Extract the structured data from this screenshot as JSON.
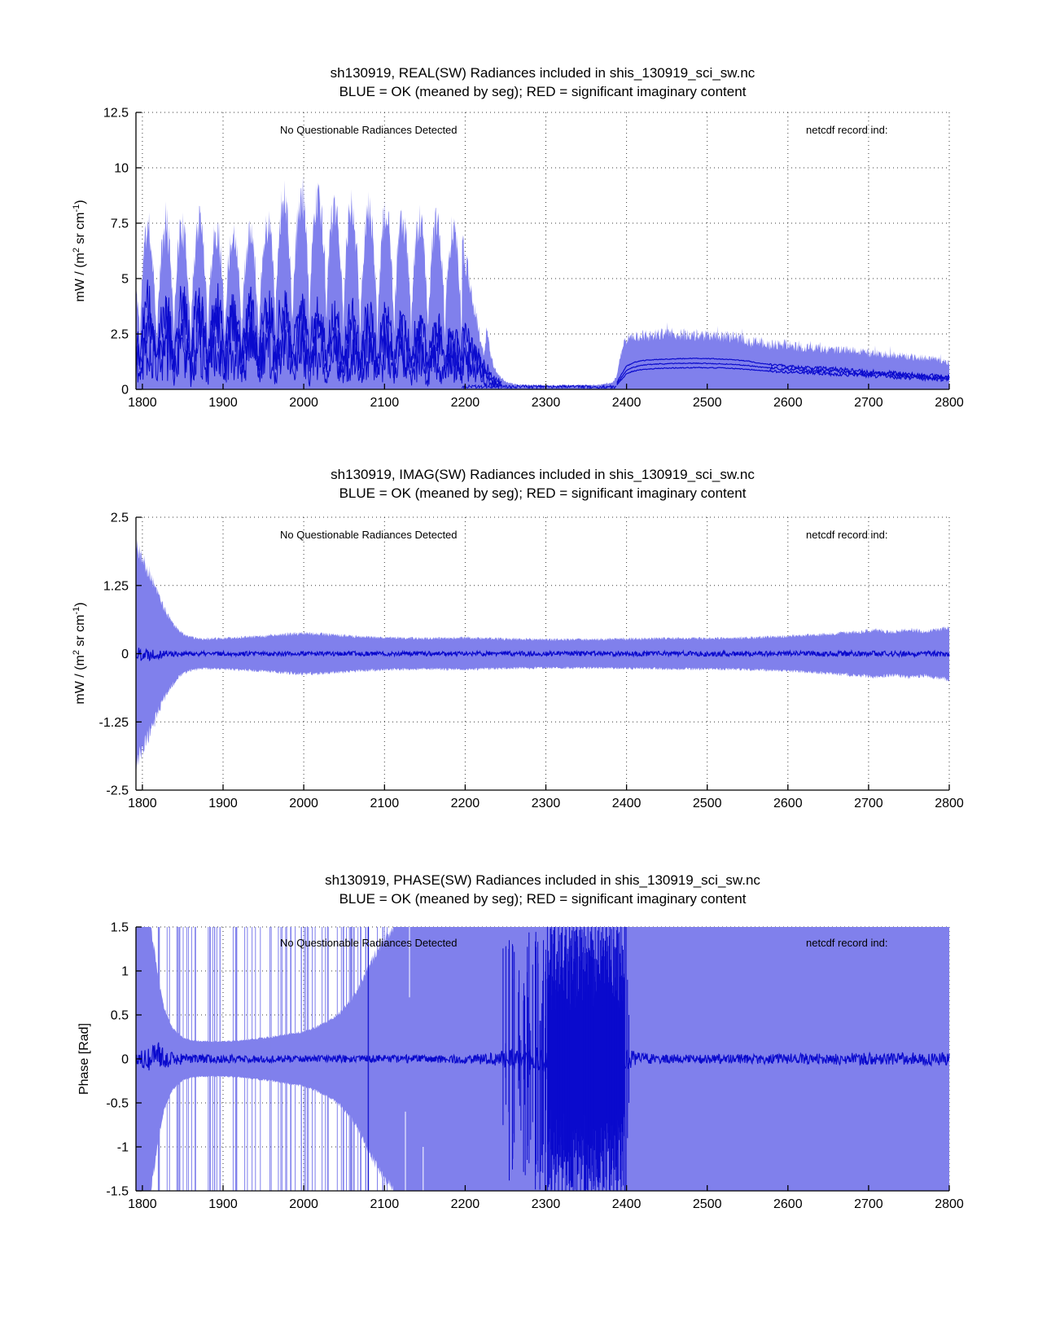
{
  "page": {
    "background": "#ffffff"
  },
  "chart_data": [
    {
      "id": "real",
      "type": "area",
      "title": "sh130919, REAL(SW) Radiances included in shis_130919_sci_sw.nc",
      "subtitle": "BLUE = OK (meaned by seg); RED = significant imaginary content",
      "annotation_left": "No Questionable Radiances Detected",
      "annotation_right": "netcdf record ind:",
      "ylabel": {
        "pre": "mW / (m",
        "sup1": "2",
        "mid": " sr cm",
        "sup2": "-1",
        "post": ")"
      },
      "xlim": [
        1792,
        2800
      ],
      "ylim": [
        0,
        12.5
      ],
      "xticks": [
        1800,
        1900,
        2000,
        2100,
        2200,
        2300,
        2400,
        2500,
        2600,
        2700,
        2800
      ],
      "yticks": [
        0,
        2.5,
        5,
        7.5,
        10,
        12.5
      ],
      "ytick_labels": [
        "0",
        "2.5",
        "5",
        "7.5",
        "10",
        "12.5"
      ],
      "grid": true,
      "colors": {
        "fill": "#8080ec",
        "line": "#0a0acd",
        "grid": "#3a3a3a",
        "axis": "#000000"
      },
      "envelope": {
        "x": [
          1792,
          1800,
          1808,
          1816,
          1824,
          1832,
          1840,
          1848,
          1856,
          1864,
          1872,
          1880,
          1888,
          1896,
          1904,
          1912,
          1920,
          1928,
          1936,
          1944,
          1952,
          1960,
          1968,
          1976,
          1984,
          1992,
          2000,
          2008,
          2016,
          2024,
          2032,
          2040,
          2048,
          2056,
          2064,
          2072,
          2080,
          2088,
          2096,
          2104,
          2112,
          2120,
          2128,
          2136,
          2144,
          2152,
          2160,
          2168,
          2176,
          2184,
          2192,
          2198,
          2204,
          2210,
          2216,
          2221,
          2224,
          2227,
          2231,
          2236,
          2242,
          2250,
          2262,
          2280,
          2310,
          2340,
          2365,
          2382,
          2388,
          2392,
          2396,
          2402,
          2412,
          2430,
          2455,
          2480,
          2505,
          2525,
          2542,
          2552,
          2562,
          2578,
          2595,
          2615,
          2635,
          2655,
          2675,
          2695,
          2715,
          2735,
          2755,
          2775,
          2790,
          2800
        ],
        "upper": [
          5.0,
          7.5,
          7.2,
          6.4,
          6.9,
          7.3,
          7.5,
          7.4,
          6.7,
          7.3,
          7.6,
          7.4,
          6.8,
          7.3,
          6.9,
          7.0,
          7.2,
          6.8,
          7.0,
          6.9,
          7.1,
          8.0,
          8.8,
          8.6,
          8.1,
          8.3,
          8.7,
          8.9,
          8.6,
          8.9,
          8.4,
          7.8,
          8.1,
          8.3,
          7.7,
          7.5,
          8.2,
          7.8,
          7.6,
          7.9,
          7.4,
          7.5,
          7.7,
          7.4,
          7.6,
          7.5,
          7.4,
          7.5,
          7.3,
          7.2,
          6.9,
          6.2,
          5.2,
          4.0,
          2.8,
          1.8,
          1.6,
          2.9,
          1.7,
          1.0,
          0.6,
          0.35,
          0.22,
          0.18,
          0.17,
          0.18,
          0.2,
          0.28,
          0.6,
          1.5,
          2.05,
          2.3,
          2.4,
          2.45,
          2.5,
          2.45,
          2.42,
          2.38,
          2.3,
          2.1,
          2.18,
          2.0,
          2.05,
          1.9,
          1.85,
          1.75,
          1.8,
          1.65,
          1.6,
          1.55,
          1.45,
          1.4,
          1.3,
          1.2
        ]
      },
      "comb": {
        "range": [
          1792,
          2196
        ],
        "period": 21,
        "min_frac": 0.25,
        "exp": 0.6
      },
      "noise_frac": 0.12,
      "dark": {
        "band": {
          "x": [
            1792,
            1800,
            1850,
            1900,
            1950,
            1960,
            1975,
            2000,
            2025,
            2050,
            2075,
            2100,
            2125,
            2150,
            2175,
            2192,
            2200,
            2210,
            2220,
            2228,
            2236,
            2245
          ],
          "hi": [
            3.6,
            5.0,
            4.9,
            5.0,
            4.7,
            5.1,
            5.0,
            4.6,
            4.4,
            4.2,
            4.3,
            4.1,
            3.9,
            3.8,
            3.6,
            3.4,
            3.0,
            2.4,
            1.7,
            1.2,
            0.7,
            0.4
          ]
        },
        "flat": {
          "range": [
            2196,
            2388
          ],
          "lo": 0.05,
          "hi": 0.2
        },
        "lines": {
          "x": [
            2388,
            2394,
            2400,
            2408,
            2420,
            2440,
            2465,
            2490,
            2515,
            2535,
            2550,
            2562,
            2578,
            2595,
            2615,
            2640,
            2665,
            2690,
            2715,
            2740,
            2765,
            2790,
            2800
          ],
          "l1": [
            0.3,
            0.7,
            1.05,
            1.2,
            1.3,
            1.35,
            1.38,
            1.4,
            1.37,
            1.33,
            1.28,
            1.2,
            1.12,
            1.06,
            1.0,
            0.95,
            0.9,
            0.82,
            0.76,
            0.7,
            0.64,
            0.58,
            0.55
          ],
          "l2": [
            0.25,
            0.55,
            0.85,
            1.0,
            1.1,
            1.15,
            1.17,
            1.18,
            1.16,
            1.12,
            1.08,
            1.02,
            0.97,
            0.93,
            0.88,
            0.84,
            0.79,
            0.73,
            0.68,
            0.63,
            0.58,
            0.53,
            0.5
          ],
          "l3": [
            0.2,
            0.45,
            0.7,
            0.82,
            0.9,
            0.95,
            0.97,
            0.98,
            0.97,
            0.94,
            0.9,
            0.86,
            0.82,
            0.79,
            0.76,
            0.72,
            0.68,
            0.64,
            0.6,
            0.56,
            0.52,
            0.48,
            0.46
          ],
          "noise_after": 2578
        }
      }
    },
    {
      "id": "imag",
      "type": "area",
      "title": "sh130919, IMAG(SW) Radiances included in shis_130919_sci_sw.nc",
      "subtitle": "BLUE = OK (meaned by seg); RED = significant imaginary content",
      "annotation_left": "No Questionable Radiances Detected",
      "annotation_right": "netcdf record ind:",
      "ylabel": {
        "pre": "mW / (m",
        "sup1": "2",
        "mid": " sr cm",
        "sup2": "-1",
        "post": ")"
      },
      "xlim": [
        1792,
        2800
      ],
      "ylim": [
        -2.5,
        2.5
      ],
      "xticks": [
        1800,
        1900,
        2000,
        2100,
        2200,
        2300,
        2400,
        2500,
        2600,
        2700,
        2800
      ],
      "yticks": [
        -2.5,
        -1.25,
        0,
        1.25,
        2.5
      ],
      "ytick_labels": [
        "-2.5",
        "-1.25",
        "0",
        "1.25",
        "2.5"
      ],
      "grid": true,
      "colors": {
        "fill": "#8080ec",
        "line": "#0a0acd",
        "grid": "#3a3a3a",
        "axis": "#000000"
      },
      "envelope": {
        "x": [
          1792,
          1798,
          1804,
          1810,
          1816,
          1822,
          1828,
          1836,
          1846,
          1858,
          1875,
          1900,
          1925,
          1950,
          1975,
          2000,
          2020,
          2040,
          2060,
          2085,
          2110,
          2150,
          2200,
          2250,
          2300,
          2350,
          2400,
          2450,
          2500,
          2550,
          2600,
          2630,
          2660,
          2690,
          2710,
          2730,
          2750,
          2770,
          2785,
          2800
        ],
        "half_width": [
          2.0,
          1.8,
          1.6,
          1.42,
          1.2,
          0.98,
          0.78,
          0.58,
          0.4,
          0.3,
          0.26,
          0.27,
          0.29,
          0.31,
          0.34,
          0.36,
          0.35,
          0.33,
          0.31,
          0.29,
          0.28,
          0.27,
          0.28,
          0.26,
          0.25,
          0.25,
          0.26,
          0.27,
          0.27,
          0.28,
          0.31,
          0.33,
          0.36,
          0.39,
          0.42,
          0.38,
          0.43,
          0.39,
          0.44,
          0.46
        ]
      },
      "noise_frac": 0.1,
      "center_line": {
        "x": [
          1792,
          1810,
          1825,
          1845,
          1900,
          2790,
          2800
        ],
        "amp": [
          0.14,
          0.12,
          0.08,
          0.045,
          0.04,
          0.05,
          0.05
        ]
      }
    },
    {
      "id": "phase",
      "type": "area",
      "title": "sh130919, PHASE(SW) Radiances included in shis_130919_sci_sw.nc",
      "subtitle": "BLUE = OK (meaned by seg); RED = significant imaginary content",
      "annotation_left": "No Questionable Radiances Detected",
      "annotation_right": "netcdf record ind:",
      "ylabel": {
        "pre": "Phase [Rad]"
      },
      "xlim": [
        1792,
        2800
      ],
      "ylim": [
        -1.5,
        1.5
      ],
      "xticks": [
        1800,
        1900,
        2000,
        2100,
        2200,
        2300,
        2400,
        2500,
        2600,
        2700,
        2800
      ],
      "yticks": [
        -1.5,
        -1,
        -0.5,
        0,
        0.5,
        1,
        1.5
      ],
      "ytick_labels": [
        "-1.5",
        "-1",
        "-0.5",
        "0",
        "0.5",
        "1",
        "1.5"
      ],
      "grid": true,
      "colors": {
        "fill": "#8080ec",
        "line": "#0a0acd",
        "vline": "#1c1cd2",
        "grid": "#3a3a3a",
        "axis": "#000000"
      },
      "band": {
        "x": [
          1792,
          1810,
          1814,
          1819,
          1825,
          1832,
          1840,
          1850,
          1862,
          1880,
          1900,
          1920,
          1940,
          1960,
          1980,
          2000,
          2015,
          2030,
          2045,
          2058,
          2068,
          2078,
          2088,
          2098,
          2106,
          2112,
          2118,
          2800
        ],
        "half_width": [
          1.5,
          1.5,
          1.3,
          0.95,
          0.65,
          0.45,
          0.32,
          0.24,
          0.21,
          0.2,
          0.2,
          0.21,
          0.23,
          0.25,
          0.28,
          0.31,
          0.36,
          0.43,
          0.53,
          0.66,
          0.82,
          1.0,
          1.18,
          1.33,
          1.44,
          1.5,
          1.5,
          1.5
        ]
      },
      "spikes": {
        "range_a": [
          1815,
          1960
        ],
        "range_b": [
          1960,
          2112
        ],
        "count": 80,
        "frac_a": 0.42
      },
      "white_gaps": [
        {
          "x": 2126,
          "from": -1.5,
          "to": -0.6
        },
        {
          "x": 2148,
          "from": -1.5,
          "to": -1.0
        },
        {
          "x": 2131,
          "from": 0.7,
          "to": 1.5
        }
      ],
      "vline_x": 2080,
      "burst": {
        "sparse": {
          "range": [
            2246,
            2302
          ],
          "count": 42
        },
        "core": {
          "range": [
            2302,
            2398
          ],
          "step": 0.38
        },
        "tails": [
          {
            "x": 2399.5,
            "h": 1.5
          },
          {
            "x": 2401.2,
            "h": 0.9
          },
          {
            "x": 2403.0,
            "h": 0.5
          }
        ]
      },
      "center_line": {
        "x": [
          1792,
          1812,
          1820,
          1830,
          1860,
          2000,
          2200,
          2240,
          2260,
          2300,
          2400,
          2415,
          2440,
          2500,
          2600,
          2700,
          2800
        ],
        "amp": [
          0.07,
          0.15,
          0.2,
          0.1,
          0.05,
          0.04,
          0.05,
          0.08,
          0.12,
          0.15,
          0.12,
          0.07,
          0.05,
          0.05,
          0.06,
          0.07,
          0.08
        ]
      }
    }
  ]
}
